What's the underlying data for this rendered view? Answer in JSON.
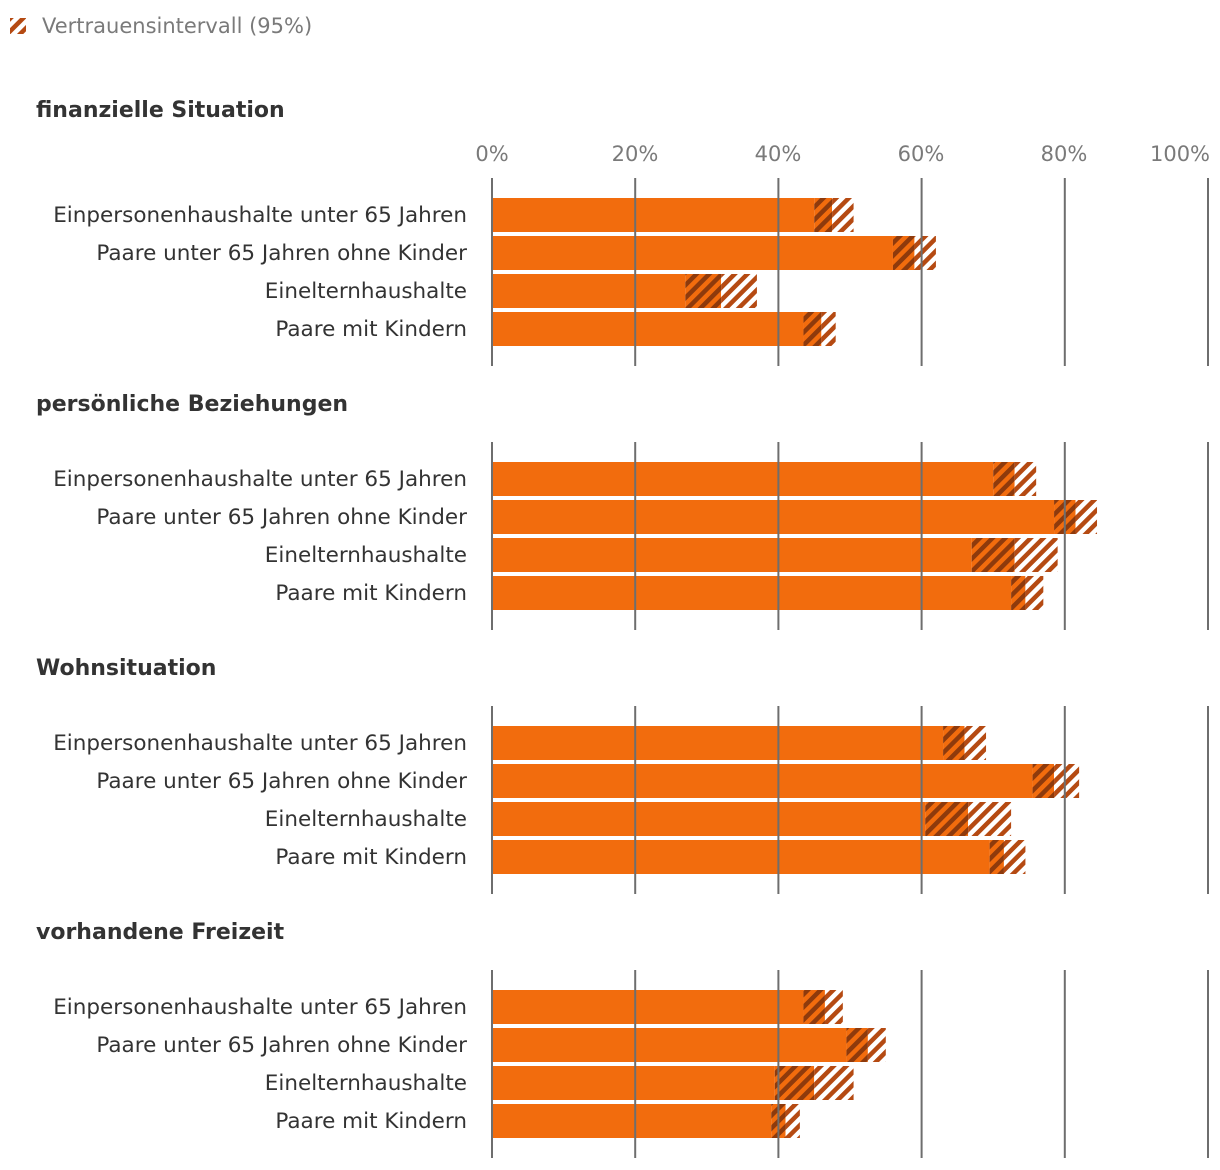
{
  "legend": {
    "label": "Vertrauensintervall (95%)",
    "icon": "hatched-swatch-icon"
  },
  "colors": {
    "bar": "#f26c0d",
    "ci_dark": "#a8420a",
    "ci_hatch": "#b54a12",
    "grid": "#6e6e6e"
  },
  "chart_data": {
    "type": "bar",
    "orientation": "horizontal",
    "xlim": [
      0,
      100
    ],
    "ticks": [
      "0%",
      "20%",
      "40%",
      "60%",
      "80%",
      "100%"
    ],
    "categories": [
      "Einpersonenhaushalte unter 65 Jahren",
      "Paare unter 65 Jahren ohne Kinder",
      "Einelternhaushalte",
      "Paare mit Kindern"
    ],
    "panels": [
      {
        "title": "finanzielle Situation",
        "values": [
          47.5,
          59,
          32,
          46
        ],
        "ci_low": [
          45,
          56,
          27,
          43.5
        ],
        "ci_high": [
          50.5,
          62,
          37,
          48
        ]
      },
      {
        "title": "persönliche Beziehungen",
        "values": [
          73,
          81.5,
          73,
          74.5
        ],
        "ci_low": [
          70,
          78.5,
          67,
          72.5
        ],
        "ci_high": [
          76,
          84.5,
          79,
          77
        ]
      },
      {
        "title": "Wohnsituation",
        "values": [
          66,
          78.5,
          66.5,
          71.5
        ],
        "ci_low": [
          63,
          75.5,
          60.5,
          69.5
        ],
        "ci_high": [
          69,
          82,
          72.5,
          74.5
        ]
      },
      {
        "title": "vorhandene Freizeit",
        "values": [
          46.5,
          52.5,
          45,
          41
        ],
        "ci_low": [
          43.5,
          49.5,
          39.5,
          39
        ],
        "ci_high": [
          49,
          55,
          50.5,
          43
        ]
      }
    ]
  }
}
